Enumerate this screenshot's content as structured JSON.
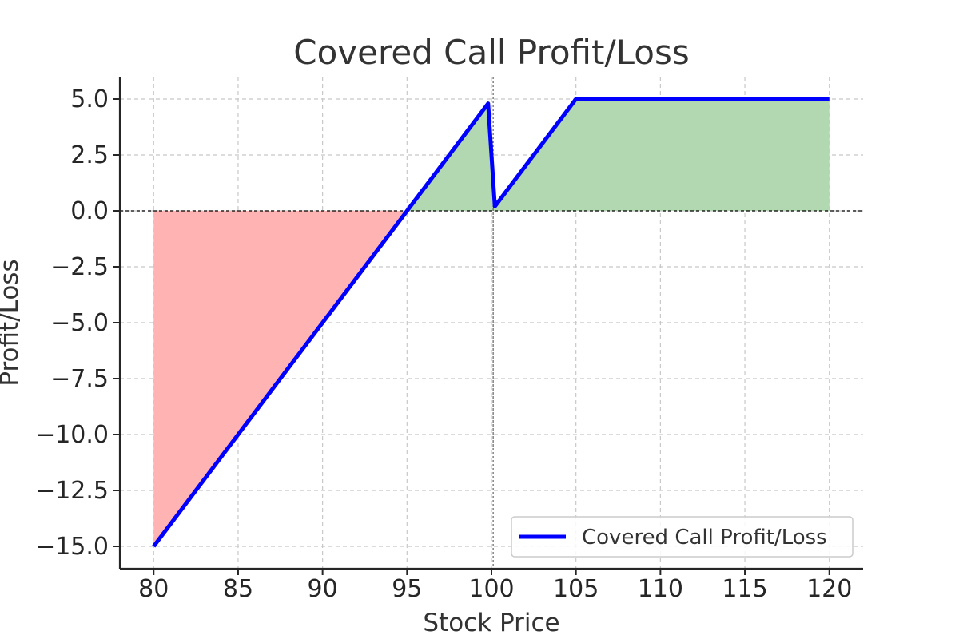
{
  "chart_data": {
    "type": "line",
    "title": "Covered Call Profit/Loss",
    "xlabel": "Stock Price",
    "ylabel": "Profit/Loss",
    "xlim": [
      78,
      122
    ],
    "ylim": [
      -16,
      6
    ],
    "x_ticks": [
      80,
      85,
      90,
      95,
      100,
      105,
      110,
      115,
      120
    ],
    "y_ticks": [
      5.0,
      2.5,
      0.0,
      -2.5,
      -5.0,
      -7.5,
      -10.0,
      -12.5,
      -15.0
    ],
    "x_tick_labels": [
      "80",
      "85",
      "90",
      "95",
      "100",
      "105",
      "110",
      "115",
      "120"
    ],
    "y_tick_labels": [
      "5.0",
      "2.5",
      "0.0",
      "−2.5",
      "−5.0",
      "−7.5",
      "−10.0",
      "−12.5",
      "−15.0"
    ],
    "grid": true,
    "legend_position": "bottom-right",
    "series": [
      {
        "name": "Covered Call Profit/Loss",
        "color": "#0000ff",
        "x": [
          80,
          95,
          99.8,
          100.2,
          105,
          120
        ],
        "y": [
          -15.0,
          0.0,
          4.8,
          0.2,
          5.0,
          5.0
        ]
      }
    ],
    "reference_lines": {
      "horizontal_y": 0,
      "vertical_x": 100.1
    },
    "fill_colors": {
      "loss": "#ffb3b3",
      "profit": "#b2d8b2"
    }
  }
}
